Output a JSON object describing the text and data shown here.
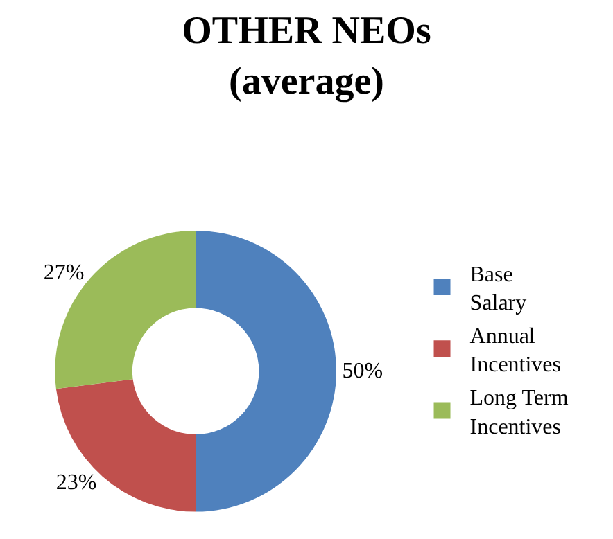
{
  "chart_data": {
    "type": "donut",
    "title": "OTHER NEOs (average)",
    "categories": [
      "Base Salary",
      "Annual Incentives",
      "Long Term Incentives"
    ],
    "values": [
      50,
      23,
      27
    ],
    "colors": [
      "#4f81bd",
      "#c0504d",
      "#9bbb59"
    ],
    "value_labels": [
      "50%",
      "23%",
      "27%"
    ],
    "legend": "right"
  }
}
